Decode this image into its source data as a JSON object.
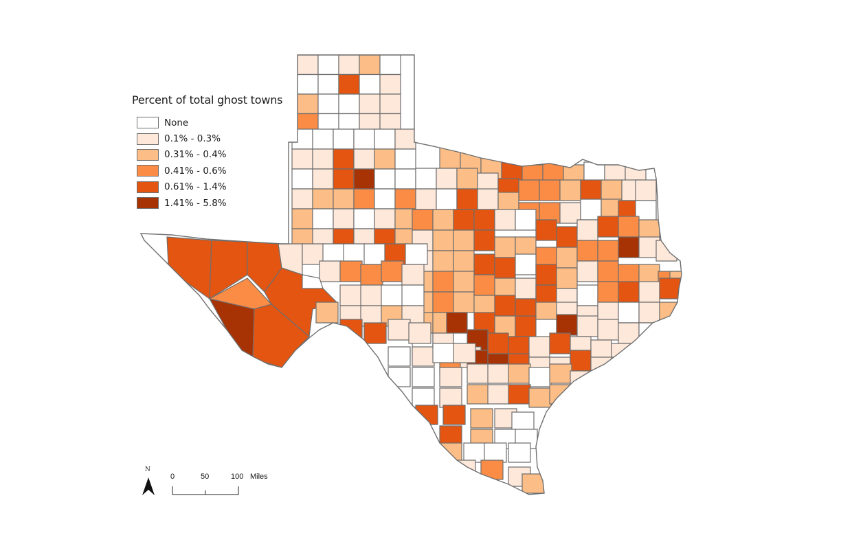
{
  "legend": {
    "title": "Percent of total ghost towns",
    "classes": [
      {
        "label": "None",
        "color": "#ffffff"
      },
      {
        "label": "0.1%  -  0.3%",
        "color": "#fde8da"
      },
      {
        "label": "0.31%  -  0.4%",
        "color": "#fcbd86"
      },
      {
        "label": "0.41%  -  0.6%",
        "color": "#fa8c45"
      },
      {
        "label": "0.61%  -  1.4%",
        "color": "#e45511"
      },
      {
        "label": "1.41%  -  5.8%",
        "color": "#a73204"
      }
    ]
  },
  "north_arrow": {
    "letter": "N"
  },
  "scale_bar": {
    "ticks": [
      "0",
      "50",
      "100"
    ],
    "unit": "Miles"
  },
  "colors": {
    "county_border": "#6e6e6e",
    "state_border": "#6e6e6e"
  }
}
